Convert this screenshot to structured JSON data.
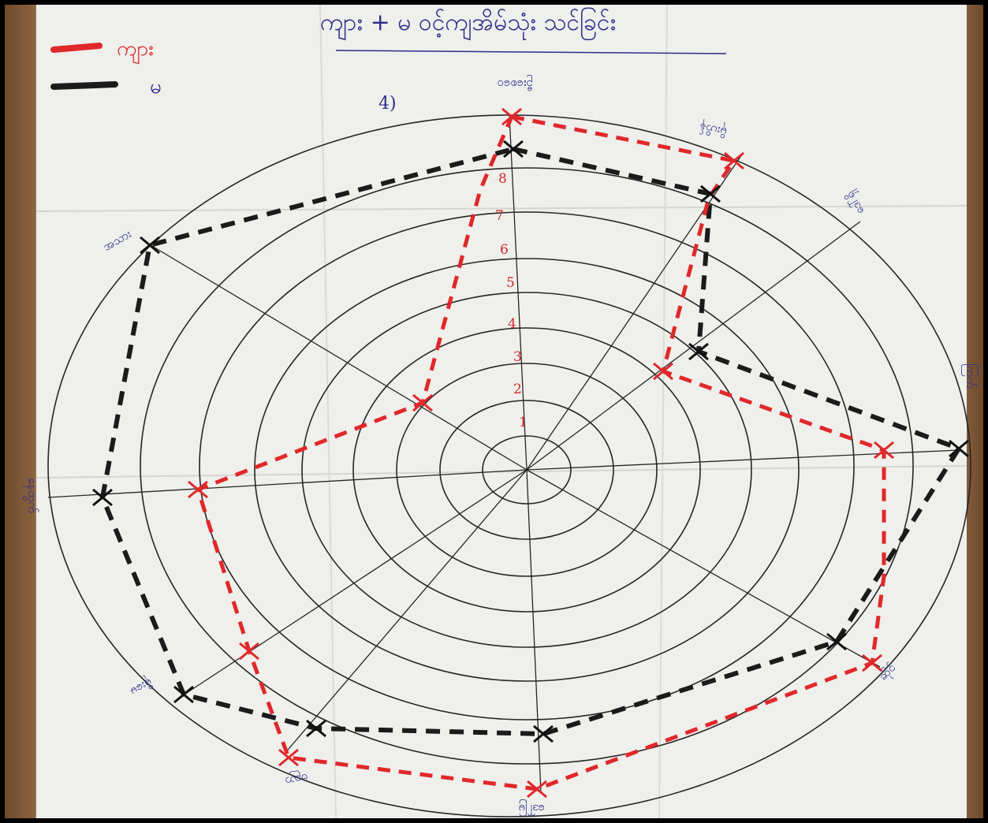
{
  "poster": {
    "title": "ကျား + မ ဝင့်ကျအိမ်သုံး သင်ခြင်း",
    "legend": [
      {
        "label": "ကျား",
        "color": "#e0282a",
        "style": "dashed-red"
      },
      {
        "label": "မ",
        "color": "#1b1b1b",
        "style": "dashed-black"
      }
    ],
    "corner_mark": "4)",
    "ring_numbers": [
      "1",
      "2",
      "3",
      "4",
      "5",
      "6",
      "7",
      "8"
    ],
    "spoke_labels": [
      "ဦးစေဝေ",
      "မိုးဟိန်",
      "ဒေါ်ရှိ",
      "ကြက်",
      "ဆိုင်",
      "ဒေါ်မြ",
      "ဗညာ",
      "မိုးမေ",
      "နေထွက်",
      "အသား"
    ],
    "colors": {
      "paper": "#efefec",
      "ink_black": "#1b1b1b",
      "ink_red": "#e0282a",
      "ink_blue": "#2c2c8a",
      "wood": "#7a5636"
    }
  }
}
